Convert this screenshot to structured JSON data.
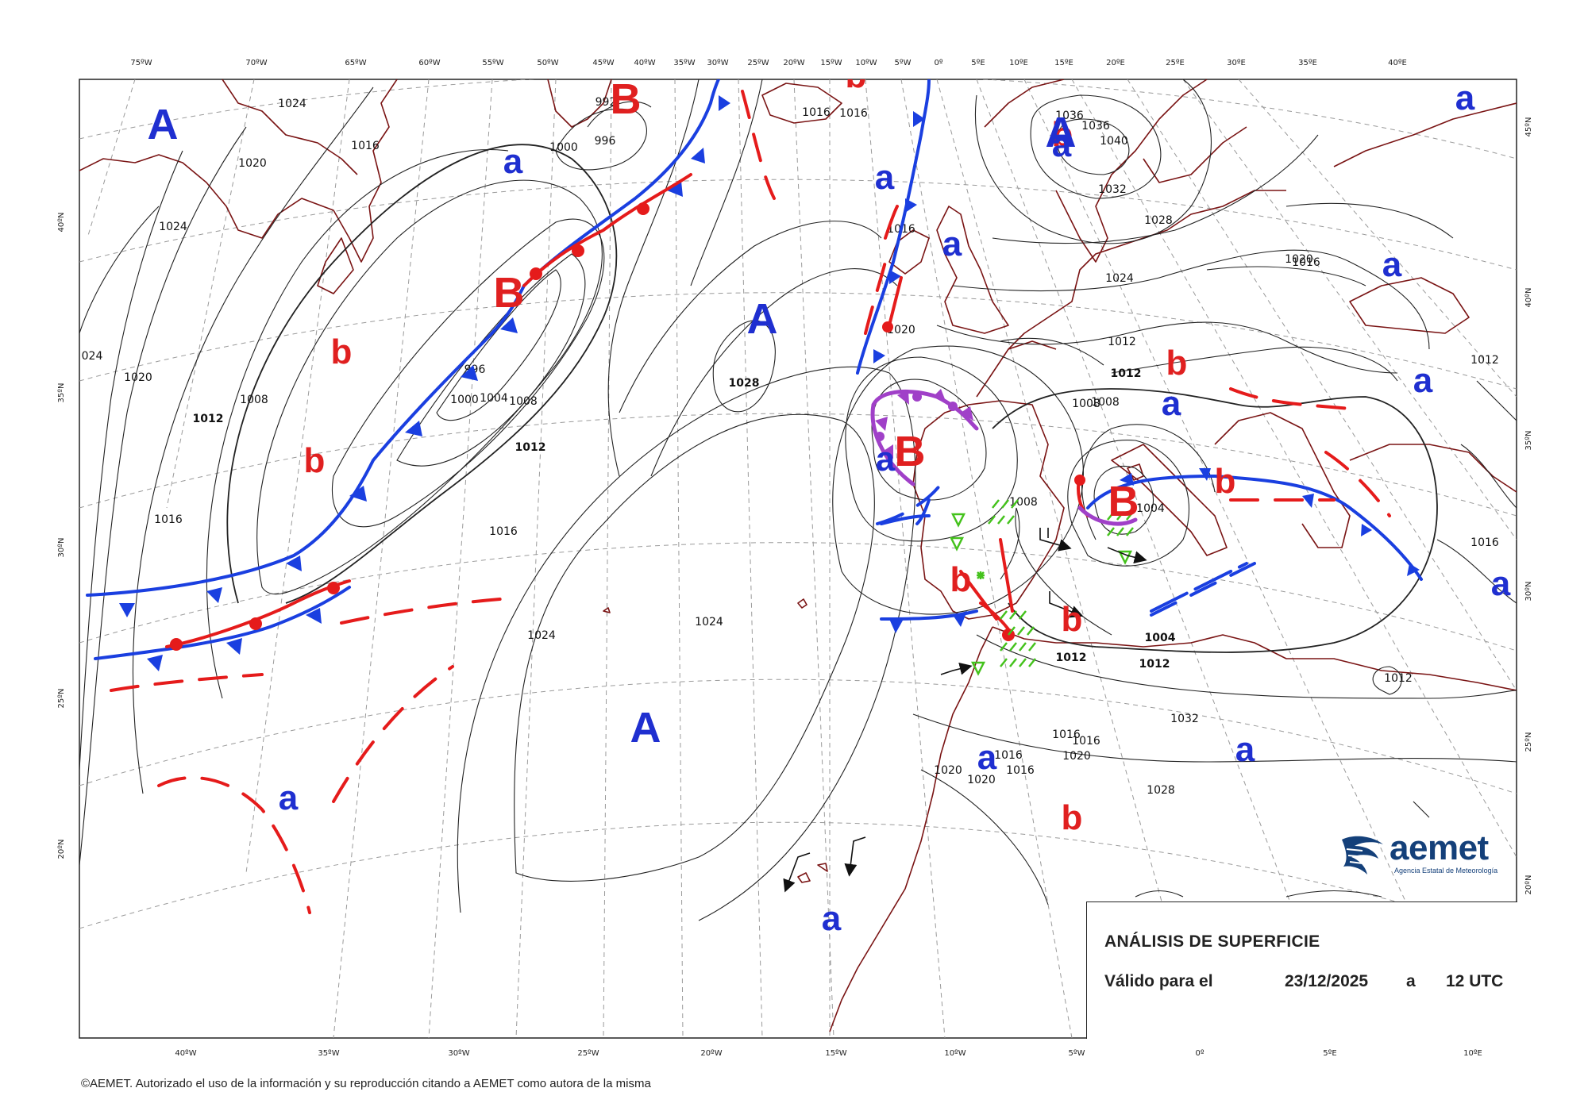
{
  "top_lon_labels": [
    "75ºW",
    "70ºW",
    "65ºW",
    "60ºW",
    "55ºW",
    "50ºW",
    "45ºW",
    "40ºW",
    "35ºW",
    "30ºW",
    "25ºW",
    "20ºW",
    "15ºW",
    "10ºW",
    "5ºW",
    "0º",
    "5ºE",
    "10ºE",
    "15ºE",
    "20ºE",
    "25ºE",
    "30ºE",
    "35ºE",
    "40ºE"
  ],
  "bottom_lon_labels": [
    "40ºW",
    "35ºW",
    "30ºW",
    "25ºW",
    "20ºW",
    "15ºW",
    "10ºW",
    "5ºW",
    "0º",
    "5ºE",
    "10ºE"
  ],
  "left_lat_labels": [
    "40ºN",
    "35ºN",
    "30ºN",
    "25ºN",
    "20ºN"
  ],
  "right_lat_labels": [
    "45ºN",
    "40ºN",
    "35ºN",
    "30ºN",
    "25ºN",
    "20ºN"
  ],
  "isobar_labels": [
    "1024",
    "1020",
    "1016",
    "1024",
    "024",
    "1020",
    "1012",
    "1008",
    "1016",
    "1004",
    "1000",
    "996",
    "1008",
    "1012",
    "1016",
    "1024",
    "1024",
    "1028",
    "1020",
    "1016",
    "1012",
    "1008",
    "1008",
    "1004",
    "1012",
    "1028",
    "1032",
    "1036",
    "1040",
    "1032",
    "1028",
    "1024",
    "1020",
    "1016",
    "1012",
    "1008",
    "1004",
    "1012",
    "1012",
    "1016",
    "1016",
    "1016",
    "1020",
    "1020",
    "1016",
    "1020",
    "1016",
    "1012",
    "996",
    "1000",
    "1016",
    "1016",
    "992",
    "1036"
  ],
  "pressure_centres": [
    {
      "label": "A",
      "color": "#1f2fd0",
      "size": "big"
    },
    {
      "label": "B",
      "color": "#e02020",
      "size": "big"
    },
    {
      "label": "a",
      "color": "#1f2fd0",
      "size": "small"
    },
    {
      "label": "b",
      "color": "#e02020",
      "size": "small"
    },
    {
      "label": "B",
      "color": "#e02020",
      "size": "big"
    },
    {
      "label": "b",
      "color": "#e02020",
      "size": "small"
    },
    {
      "label": "b",
      "color": "#e02020",
      "size": "small"
    },
    {
      "label": "a",
      "color": "#1f2fd0",
      "size": "small"
    },
    {
      "label": "A",
      "color": "#1f2fd0",
      "size": "big"
    },
    {
      "label": "A",
      "color": "#1f2fd0",
      "size": "big"
    },
    {
      "label": "a",
      "color": "#1f2fd0",
      "size": "small"
    },
    {
      "label": "a",
      "color": "#1f2fd0",
      "size": "small"
    },
    {
      "label": "b",
      "color": "#e02020",
      "size": "small"
    },
    {
      "label": "a",
      "color": "#1f2fd0",
      "size": "small"
    },
    {
      "label": "A",
      "color": "#1f2fd0",
      "size": "big"
    },
    {
      "label": "B",
      "color": "#e02020",
      "size": "big"
    },
    {
      "label": "b",
      "color": "#e02020",
      "size": "small"
    },
    {
      "label": "b",
      "color": "#e02020",
      "size": "small"
    },
    {
      "label": "B",
      "color": "#e02020",
      "size": "big"
    },
    {
      "label": "b",
      "color": "#e02020",
      "size": "small"
    },
    {
      "label": "a",
      "color": "#1f2fd0",
      "size": "small"
    },
    {
      "label": "b",
      "color": "#e02020",
      "size": "small"
    },
    {
      "label": "a",
      "color": "#1f2fd0",
      "size": "small"
    },
    {
      "label": "a",
      "color": "#1f2fd0",
      "size": "small"
    },
    {
      "label": "a",
      "color": "#1f2fd0",
      "size": "small"
    },
    {
      "label": "a",
      "color": "#1f2fd0",
      "size": "small"
    },
    {
      "label": "a",
      "color": "#1f2fd0",
      "size": "small"
    },
    {
      "label": "a",
      "color": "#1f2fd0",
      "size": "small"
    },
    {
      "label": "b",
      "color": "#e02020",
      "size": "small"
    },
    {
      "label": "a",
      "color": "#1f2fd0",
      "size": "small"
    },
    {
      "label": "a",
      "color": "#1f2fd0",
      "size": "small"
    }
  ],
  "info": {
    "title": "ANÁLISIS DE SUPERFICIE",
    "valid_label": "Válido para el",
    "date": "23/12/2025",
    "at": "a",
    "time": "12 UTC"
  },
  "logo": {
    "word": "aemet",
    "subtitle": "Agencia Estatal de Meteorología"
  },
  "copyright": "©AEMET. Autorizado el uso de la información y su reproducción citando a AEMET como autora de la misma",
  "colors": {
    "cold_front": "#1a3fe0",
    "warm_front": "#e51b1b",
    "occlusion": "#a040c8",
    "isobar": "#222222",
    "coast": "#7a1414",
    "precip": "#44c21c",
    "high": "#1f2fd0",
    "low": "#e02020"
  }
}
